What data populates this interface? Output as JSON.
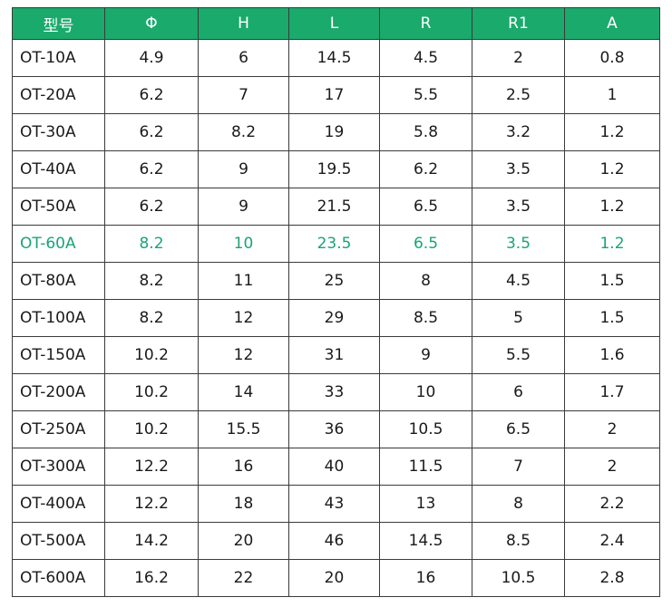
{
  "table": {
    "header": [
      "型号",
      "Φ",
      "H",
      "L",
      "R",
      "R1",
      "A"
    ],
    "header_color": "#1aaa6c",
    "highlight_row": 5,
    "highlight_color": "#1aa37a",
    "rows": [
      [
        "OT-10A",
        "4.9",
        "6",
        "14.5",
        "4.5",
        "2",
        "0.8"
      ],
      [
        "OT-20A",
        "6.2",
        "7",
        "17",
        "5.5",
        "2.5",
        "1"
      ],
      [
        "OT-30A",
        "6.2",
        "8.2",
        "19",
        "5.8",
        "3.2",
        "1.2"
      ],
      [
        "OT-40A",
        "6.2",
        "9",
        "19.5",
        "6.2",
        "3.5",
        "1.2"
      ],
      [
        "OT-50A",
        "6.2",
        "9",
        "21.5",
        "6.5",
        "3.5",
        "1.2"
      ],
      [
        "OT-60A",
        "8.2",
        "10",
        "23.5",
        "6.5",
        "3.5",
        "1.2"
      ],
      [
        "OT-80A",
        "8.2",
        "11",
        "25",
        "8",
        "4.5",
        "1.5"
      ],
      [
        "OT-100A",
        "8.2",
        "12",
        "29",
        "8.5",
        "5",
        "1.5"
      ],
      [
        "OT-150A",
        "10.2",
        "12",
        "31",
        "9",
        "5.5",
        "1.6"
      ],
      [
        "OT-200A",
        "10.2",
        "14",
        "33",
        "10",
        "6",
        "1.7"
      ],
      [
        "OT-250A",
        "10.2",
        "15.5",
        "36",
        "10.5",
        "6.5",
        "2"
      ],
      [
        "OT-300A",
        "12.2",
        "16",
        "40",
        "11.5",
        "7",
        "2"
      ],
      [
        "OT-400A",
        "12.2",
        "18",
        "43",
        "13",
        "8",
        "2.2"
      ],
      [
        "OT-500A",
        "14.2",
        "20",
        "46",
        "14.5",
        "8.5",
        "2.4"
      ],
      [
        "OT-600A",
        "16.2",
        "22",
        "20",
        "16",
        "10.5",
        "2.8"
      ]
    ]
  }
}
